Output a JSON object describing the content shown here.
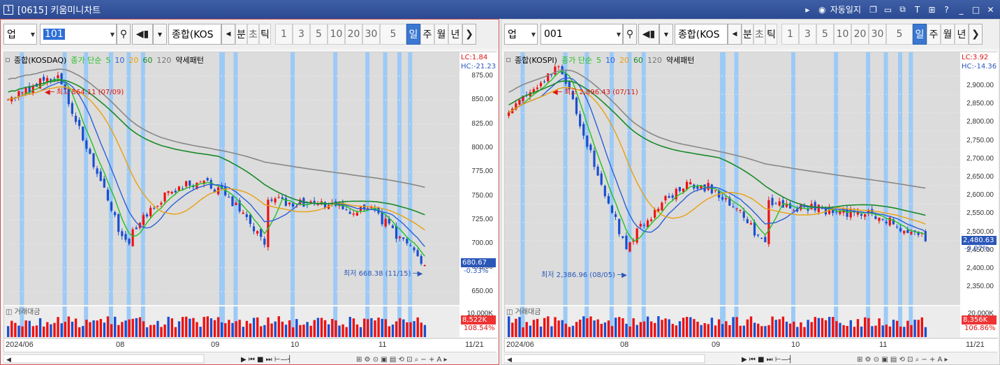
{
  "window": {
    "number": "1",
    "title": "[0615] 키움미니차트",
    "right_label": "자동일지"
  },
  "panels": [
    {
      "toolbar": {
        "type": "업",
        "code": "101",
        "name": "종합(KOS",
        "units": [
          "분",
          "초",
          "틱"
        ],
        "periods": [
          "1",
          "3",
          "5",
          "10",
          "20",
          "30"
        ],
        "sel_period": "5",
        "modes": [
          "일",
          "주",
          "월",
          "년"
        ],
        "active_mode": "일"
      },
      "legend": {
        "name": "종합(KOSDAQ)",
        "ma_label": "종가 단순",
        "ma": [
          "5",
          "10",
          "20",
          "60",
          "120"
        ],
        "pattern": "약세패턴"
      },
      "lc": "LC:1.84",
      "hc": "HC:-21.23",
      "yticks": [
        "875.00",
        "850.00",
        "825.00",
        "800.00",
        "775.00",
        "750.00",
        "725.00",
        "700.00",
        "675.00",
        "650.00"
      ],
      "price_label": "680.67",
      "price_change": "-0.33%",
      "high_label": "최고 864.11 (07/09)",
      "low_label": "최저 668.38 (11/15)",
      "vol_title": "거래대금",
      "vol_label": "8,522K",
      "vol_change": "108.54%",
      "vol_top": "10,000K",
      "xticks": [
        "2024/06",
        "08",
        "09",
        "10",
        "11",
        "11/21"
      ],
      "chart_data": {
        "type": "candlestick",
        "title": "종합(KOSDAQ)",
        "high": 864.11,
        "high_date": "07/09",
        "low": 668.38,
        "low_date": "11/15",
        "last": 680.67,
        "change_pct": -0.33,
        "ylim": [
          640,
          885
        ],
        "start": 840,
        "end": 680.67
      }
    },
    {
      "toolbar": {
        "type": "업",
        "code": "001",
        "name": "종합(KOS",
        "units": [
          "분",
          "초",
          "틱"
        ],
        "periods": [
          "1",
          "3",
          "5",
          "10",
          "20",
          "30"
        ],
        "sel_period": "5",
        "modes": [
          "일",
          "주",
          "월",
          "년"
        ],
        "active_mode": "일"
      },
      "legend": {
        "name": "종합(KOSPI)",
        "ma_label": "종가 단순",
        "ma": [
          "5",
          "10",
          "20",
          "60",
          "120"
        ],
        "pattern": "약세패턴"
      },
      "lc": "LC:3.92",
      "hc": "HC:-14.36",
      "yticks": [
        "2,900.00",
        "2,850.00",
        "2,800.00",
        "2,750.00",
        "2,700.00",
        "2,650.00",
        "2,600.00",
        "2,550.00",
        "2,500.00",
        "2,450.00",
        "2,400.00",
        "2,350.00"
      ],
      "price_label": "2,480.63",
      "price_change": "-0.07%",
      "high_label": "최고 2,896.43 (07/11)",
      "low_label": "최저 2,386.96 (08/05)",
      "vol_title": "거래대금",
      "vol_label": "8,356K",
      "vol_change": "106.86%",
      "vol_top": "20,000K",
      "xticks": [
        "2024/06",
        "08",
        "09",
        "10",
        "11",
        "11/21"
      ],
      "chart_data": {
        "type": "candlestick",
        "title": "종합(KOSPI)",
        "high": 2896.43,
        "high_date": "07/11",
        "low": 2386.96,
        "low_date": "08/05",
        "last": 2480.63,
        "change_pct": -0.07,
        "ylim": [
          2325,
          2925
        ],
        "start": 2780,
        "end": 2480.63
      }
    }
  ]
}
